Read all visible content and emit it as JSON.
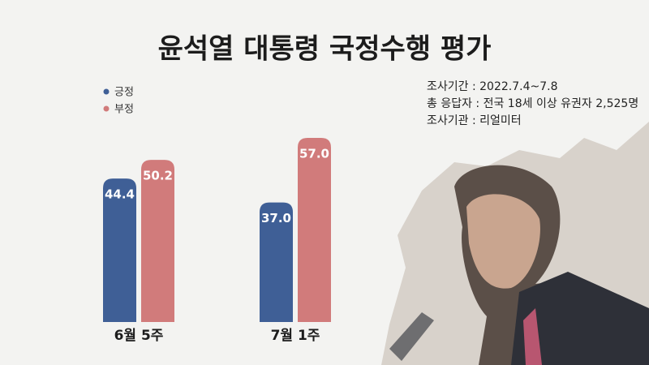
{
  "chart_data": {
    "type": "bar",
    "title": "윤석열 대통령 국정수행 평가",
    "categories": [
      "6월 5주",
      "7월 1주"
    ],
    "series": [
      {
        "name": "긍정",
        "color": "#3f5f96",
        "values": [
          44.4,
          37.0
        ],
        "value_labels": [
          "44.4",
          "37.0"
        ]
      },
      {
        "name": "부정",
        "color": "#d17b7b",
        "values": [
          50.2,
          57.0
        ],
        "value_labels": [
          "50.2",
          "57.0"
        ]
      }
    ],
    "notes": [
      "조사기간 : 2022.7.4~7.8",
      "총 응답자 : 전국 18세 이상 유권자 2,525명",
      "조사기관 : 리얼미터"
    ]
  }
}
